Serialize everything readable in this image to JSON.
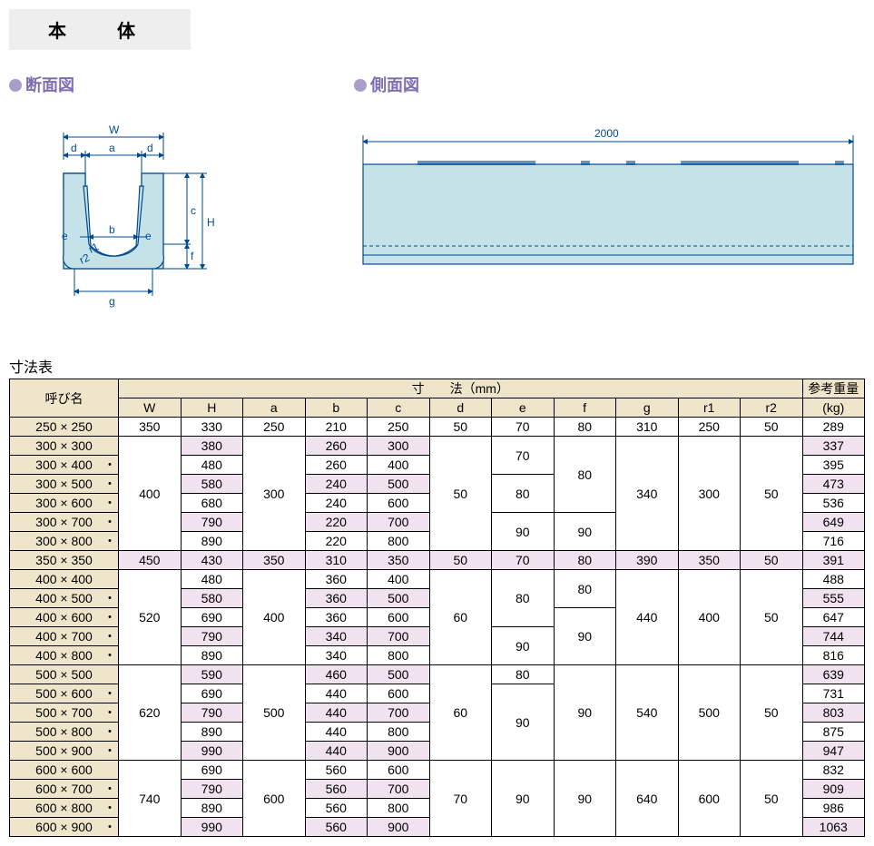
{
  "title": "本　体",
  "headings": {
    "cross": "断面図",
    "side": "側面図",
    "table": "寸法表"
  },
  "cross_labels": {
    "W": "W",
    "a": "a",
    "d": "d",
    "b": "b",
    "e": "e",
    "c": "c",
    "H": "H",
    "f": "f",
    "g": "g",
    "r1": "r1",
    "r2": "r2"
  },
  "side_label": "2000",
  "colors": {
    "shape_fill": "#c4e2e8",
    "line": "#004a8f",
    "header_bg": "#efe5ca",
    "pink_bg": "#f0e2ef",
    "bullet": "#a99ec9",
    "accent": "#7c6eb0"
  },
  "table": {
    "group_headers": {
      "name": "呼び名",
      "dims": "寸　　法（mm）",
      "weight": "参考重量"
    },
    "sub_headers": [
      "W",
      "H",
      "a",
      "b",
      "c",
      "d",
      "e",
      "f",
      "g",
      "r1",
      "r2",
      "(kg)"
    ],
    "rows": [
      {
        "name": "250 × 250",
        "dot": false,
        "W": "350",
        "H": "330",
        "a": "250",
        "b": "210",
        "c": "250",
        "d": "50",
        "e": "70",
        "f": "80",
        "g": "310",
        "r1": "250",
        "r2": "50",
        "wt": "289"
      },
      {
        "name": "300 × 300",
        "dot": false,
        "W": "",
        "H": "380",
        "a": "",
        "b": "260",
        "c": "300",
        "d": "",
        "e": "",
        "f": "",
        "g": "",
        "r1": "",
        "r2": "",
        "wt": "337"
      },
      {
        "name": "300 × 400",
        "dot": true,
        "W": "",
        "H": "480",
        "a": "",
        "b": "260",
        "c": "400",
        "d": "",
        "e": "",
        "f": "",
        "g": "",
        "r1": "",
        "r2": "",
        "wt": "395"
      },
      {
        "name": "300 × 500",
        "dot": true,
        "W": "",
        "H": "580",
        "a": "",
        "b": "240",
        "c": "500",
        "d": "",
        "e": "",
        "f": "",
        "g": "",
        "r1": "",
        "r2": "",
        "wt": "473"
      },
      {
        "name": "300 × 600",
        "dot": true,
        "W": "",
        "H": "680",
        "a": "",
        "b": "240",
        "c": "600",
        "d": "",
        "e": "",
        "f": "",
        "g": "",
        "r1": "",
        "r2": "",
        "wt": "536"
      },
      {
        "name": "300 × 700",
        "dot": true,
        "W": "",
        "H": "790",
        "a": "",
        "b": "220",
        "c": "700",
        "d": "",
        "e": "",
        "f": "",
        "g": "",
        "r1": "",
        "r2": "",
        "wt": "649"
      },
      {
        "name": "300 × 800",
        "dot": true,
        "W": "",
        "H": "890",
        "a": "",
        "b": "220",
        "c": "800",
        "d": "",
        "e": "",
        "f": "",
        "g": "",
        "r1": "",
        "r2": "",
        "wt": "716"
      },
      {
        "name": "350 × 350",
        "dot": false,
        "W": "450",
        "H": "430",
        "a": "350",
        "b": "310",
        "c": "350",
        "d": "50",
        "e": "70",
        "f": "80",
        "g": "390",
        "r1": "350",
        "r2": "50",
        "wt": "391"
      },
      {
        "name": "400 × 400",
        "dot": false,
        "W": "",
        "H": "480",
        "a": "",
        "b": "360",
        "c": "400",
        "d": "",
        "e": "",
        "f": "",
        "g": "",
        "r1": "",
        "r2": "",
        "wt": "488"
      },
      {
        "name": "400 × 500",
        "dot": true,
        "W": "",
        "H": "580",
        "a": "",
        "b": "360",
        "c": "500",
        "d": "",
        "e": "",
        "f": "",
        "g": "",
        "r1": "",
        "r2": "",
        "wt": "555"
      },
      {
        "name": "400 × 600",
        "dot": true,
        "W": "",
        "H": "690",
        "a": "",
        "b": "360",
        "c": "600",
        "d": "",
        "e": "",
        "f": "",
        "g": "",
        "r1": "",
        "r2": "",
        "wt": "647"
      },
      {
        "name": "400 × 700",
        "dot": true,
        "W": "",
        "H": "790",
        "a": "",
        "b": "340",
        "c": "700",
        "d": "",
        "e": "",
        "f": "",
        "g": "",
        "r1": "",
        "r2": "",
        "wt": "744"
      },
      {
        "name": "400 × 800",
        "dot": true,
        "W": "",
        "H": "890",
        "a": "",
        "b": "340",
        "c": "800",
        "d": "",
        "e": "",
        "f": "",
        "g": "",
        "r1": "",
        "r2": "",
        "wt": "816"
      },
      {
        "name": "500 × 500",
        "dot": false,
        "W": "",
        "H": "590",
        "a": "",
        "b": "460",
        "c": "500",
        "d": "",
        "e": "",
        "f": "",
        "g": "",
        "r1": "",
        "r2": "",
        "wt": "639"
      },
      {
        "name": "500 × 600",
        "dot": true,
        "W": "",
        "H": "690",
        "a": "",
        "b": "440",
        "c": "600",
        "d": "",
        "e": "",
        "f": "",
        "g": "",
        "r1": "",
        "r2": "",
        "wt": "731"
      },
      {
        "name": "500 × 700",
        "dot": true,
        "W": "",
        "H": "790",
        "a": "",
        "b": "440",
        "c": "700",
        "d": "",
        "e": "",
        "f": "",
        "g": "",
        "r1": "",
        "r2": "",
        "wt": "803"
      },
      {
        "name": "500 × 800",
        "dot": true,
        "W": "",
        "H": "890",
        "a": "",
        "b": "440",
        "c": "800",
        "d": "",
        "e": "",
        "f": "",
        "g": "",
        "r1": "",
        "r2": "",
        "wt": "875"
      },
      {
        "name": "500 × 900",
        "dot": true,
        "W": "",
        "H": "990",
        "a": "",
        "b": "440",
        "c": "900",
        "d": "",
        "e": "",
        "f": "",
        "g": "",
        "r1": "",
        "r2": "",
        "wt": "947"
      },
      {
        "name": "600 × 600",
        "dot": false,
        "W": "",
        "H": "690",
        "a": "",
        "b": "560",
        "c": "600",
        "d": "",
        "e": "",
        "f": "",
        "g": "",
        "r1": "",
        "r2": "",
        "wt": "832"
      },
      {
        "name": "600 × 700",
        "dot": true,
        "W": "",
        "H": "790",
        "a": "",
        "b": "560",
        "c": "700",
        "d": "",
        "e": "",
        "f": "",
        "g": "",
        "r1": "",
        "r2": "",
        "wt": "909"
      },
      {
        "name": "600 × 800",
        "dot": true,
        "W": "",
        "H": "890",
        "a": "",
        "b": "560",
        "c": "800",
        "d": "",
        "e": "",
        "f": "",
        "g": "",
        "r1": "",
        "r2": "",
        "wt": "986"
      },
      {
        "name": "600 × 900",
        "dot": true,
        "W": "",
        "H": "990",
        "a": "",
        "b": "560",
        "c": "900",
        "d": "",
        "e": "",
        "f": "",
        "g": "",
        "r1": "",
        "r2": "",
        "wt": "1063"
      }
    ],
    "merges": {
      "W": [
        {
          "start": 1,
          "span": 6,
          "text": "400"
        },
        {
          "start": 8,
          "span": 5,
          "text": "520"
        },
        {
          "start": 13,
          "span": 5,
          "text": "620"
        },
        {
          "start": 18,
          "span": 4,
          "text": "740"
        }
      ],
      "a": [
        {
          "start": 1,
          "span": 6,
          "text": "300"
        },
        {
          "start": 8,
          "span": 5,
          "text": "400"
        },
        {
          "start": 13,
          "span": 5,
          "text": "500"
        },
        {
          "start": 18,
          "span": 4,
          "text": "600"
        }
      ],
      "d": [
        {
          "start": 1,
          "span": 6,
          "text": "50"
        },
        {
          "start": 8,
          "span": 5,
          "text": "60"
        },
        {
          "start": 13,
          "span": 5,
          "text": "60"
        },
        {
          "start": 18,
          "span": 4,
          "text": "70"
        }
      ],
      "e": [
        {
          "start": 1,
          "span": 2,
          "text": "70"
        },
        {
          "start": 3,
          "span": 2,
          "text": "80"
        },
        {
          "start": 5,
          "span": 2,
          "text": "90"
        },
        {
          "start": 8,
          "span": 3,
          "text": "80"
        },
        {
          "start": 11,
          "span": 2,
          "text": "90"
        },
        {
          "start": 13,
          "span": 1,
          "text": "80"
        },
        {
          "start": 14,
          "span": 4,
          "text": "90"
        },
        {
          "start": 18,
          "span": 4,
          "text": "90"
        }
      ],
      "f": [
        {
          "start": 1,
          "span": 4,
          "text": "80"
        },
        {
          "start": 5,
          "span": 2,
          "text": "90"
        },
        {
          "start": 8,
          "span": 2,
          "text": "80"
        },
        {
          "start": 10,
          "span": 3,
          "text": "90"
        },
        {
          "start": 13,
          "span": 5,
          "text": "90"
        },
        {
          "start": 18,
          "span": 4,
          "text": "90"
        }
      ],
      "g": [
        {
          "start": 1,
          "span": 6,
          "text": "340"
        },
        {
          "start": 8,
          "span": 5,
          "text": "440"
        },
        {
          "start": 13,
          "span": 5,
          "text": "540"
        },
        {
          "start": 18,
          "span": 4,
          "text": "640"
        }
      ],
      "r1": [
        {
          "start": 1,
          "span": 6,
          "text": "300"
        },
        {
          "start": 8,
          "span": 5,
          "text": "400"
        },
        {
          "start": 13,
          "span": 5,
          "text": "500"
        },
        {
          "start": 18,
          "span": 4,
          "text": "600"
        }
      ],
      "r2": [
        {
          "start": 1,
          "span": 6,
          "text": "50"
        },
        {
          "start": 8,
          "span": 5,
          "text": "50"
        },
        {
          "start": 13,
          "span": 5,
          "text": "50"
        },
        {
          "start": 18,
          "span": 4,
          "text": "50"
        }
      ]
    }
  }
}
